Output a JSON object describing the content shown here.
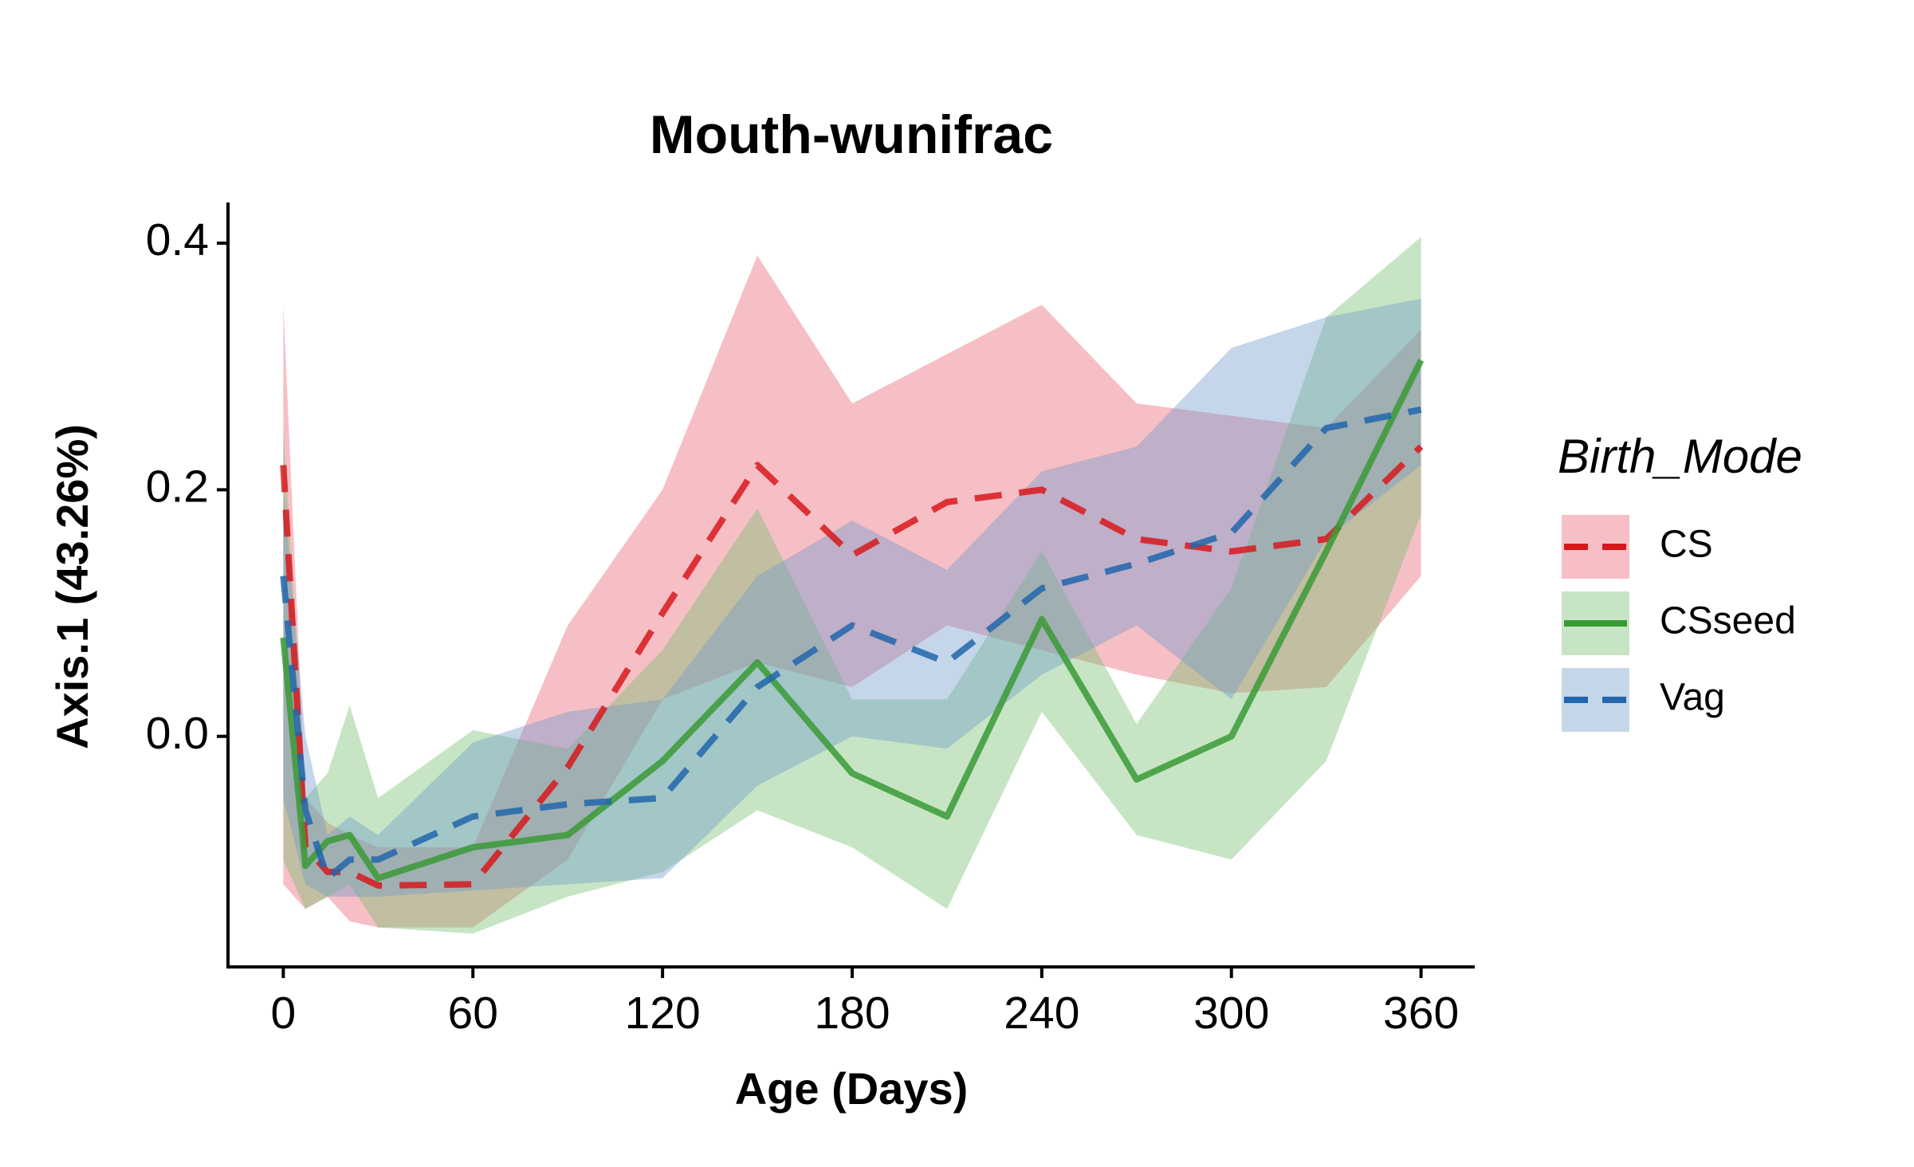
{
  "chart_data": {
    "type": "line",
    "title": "Mouth-wunifrac",
    "x_label": "Age (Days)",
    "y_label": "Axis.1 (43.26%)",
    "legend_title": "Birth_Mode",
    "x": [
      0,
      7,
      14,
      21,
      30,
      60,
      90,
      120,
      150,
      180,
      210,
      240,
      270,
      300,
      330,
      360
    ],
    "series": [
      {
        "name": "CS",
        "color": "#d7191c",
        "band_color": "#e8606e",
        "dash": true,
        "values": [
          0.22,
          -0.09,
          -0.11,
          -0.11,
          -0.121,
          -0.12,
          -0.025,
          0.1,
          0.22,
          0.147,
          0.19,
          0.2,
          0.16,
          0.15,
          0.16,
          0.235
        ],
        "lower": [
          -0.12,
          -0.14,
          -0.13,
          -0.15,
          -0.155,
          -0.155,
          -0.1,
          0.03,
          0.06,
          0.04,
          0.09,
          0.07,
          0.05,
          0.035,
          0.04,
          0.13
        ],
        "upper": [
          0.35,
          -0.05,
          -0.07,
          -0.08,
          -0.09,
          -0.09,
          0.09,
          0.2,
          0.39,
          0.27,
          0.31,
          0.35,
          0.27,
          0.26,
          0.25,
          0.33
        ]
      },
      {
        "name": "CSseed",
        "color": "#3a9a36",
        "band_color": "#74bf6c",
        "dash": false,
        "values": [
          0.08,
          -0.105,
          -0.085,
          -0.08,
          -0.115,
          -0.09,
          -0.08,
          -0.02,
          0.06,
          -0.03,
          -0.065,
          0.095,
          -0.035,
          0.0,
          0.15,
          0.305
        ],
        "lower": [
          -0.1,
          -0.14,
          -0.13,
          -0.12,
          -0.155,
          -0.16,
          -0.13,
          -0.11,
          -0.06,
          -0.09,
          -0.14,
          0.02,
          -0.08,
          -0.1,
          -0.02,
          0.18
        ],
        "upper": [
          0.25,
          -0.05,
          -0.03,
          0.025,
          -0.05,
          0.005,
          -0.01,
          0.07,
          0.185,
          0.03,
          0.03,
          0.15,
          0.01,
          0.12,
          0.34,
          0.405
        ]
      },
      {
        "name": "Vag",
        "color": "#2166ac",
        "band_color": "#6e98cc",
        "dash": true,
        "values": [
          0.13,
          -0.06,
          -0.115,
          -0.1,
          -0.1,
          -0.065,
          -0.055,
          -0.05,
          0.04,
          0.09,
          0.06,
          0.12,
          0.14,
          0.165,
          0.25,
          0.265
        ],
        "lower": [
          -0.05,
          -0.12,
          -0.13,
          -0.13,
          -0.13,
          -0.125,
          -0.12,
          -0.115,
          -0.04,
          0.0,
          -0.01,
          0.05,
          0.09,
          0.03,
          0.16,
          0.22
        ],
        "upper": [
          0.2,
          0.0,
          -0.08,
          -0.065,
          -0.08,
          -0.005,
          0.02,
          0.03,
          0.13,
          0.175,
          0.135,
          0.215,
          0.235,
          0.315,
          0.34,
          0.355
        ]
      }
    ],
    "xlim": [
      -17.5,
      377
    ],
    "ylim": [
      -0.187,
      0.433
    ],
    "xticks": [
      0,
      60,
      120,
      180,
      240,
      300,
      360
    ],
    "yticks": [
      {
        "value": 0,
        "label": "0.0"
      },
      {
        "value": 0.2,
        "label": "0.2"
      },
      {
        "value": 0.4,
        "label": "0.4"
      }
    ]
  }
}
